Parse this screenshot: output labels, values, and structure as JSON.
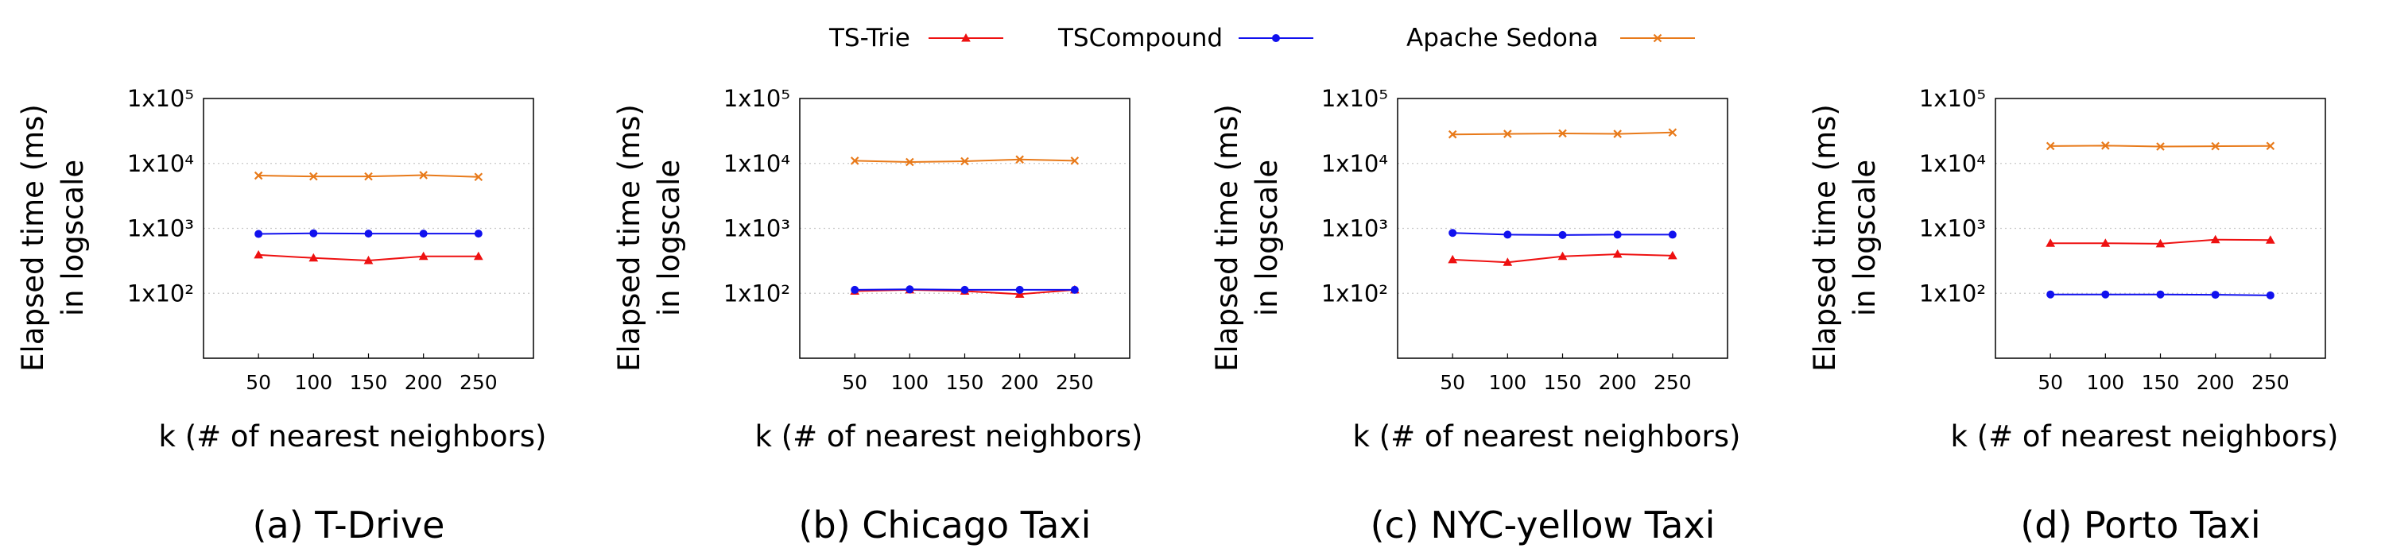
{
  "legend": {
    "placement": "top-center",
    "items": [
      {
        "label": "TS-Trie",
        "color": "#ee1111",
        "marker": "triangle"
      },
      {
        "label": "TSCompound",
        "color": "#1111ee",
        "marker": "circle"
      },
      {
        "label": "Apache Sedona",
        "color": "#e87a1a",
        "marker": "x"
      }
    ]
  },
  "chart_data": [
    {
      "type": "line",
      "title": "(a) T-Drive",
      "xlabel": "k (# of nearest neighbors)",
      "ylabel_line1": "Elapsed time (ms)",
      "ylabel_line2": "in logscale",
      "yscale": "log",
      "ylim": [
        10,
        100000
      ],
      "ytick_labels": [
        "1x10^2",
        "1x10^3",
        "1x10^4",
        "1x10^5"
      ],
      "x": [
        50,
        100,
        150,
        200,
        250
      ],
      "grid": "horizontal dotted",
      "series": [
        {
          "name": "TS-Trie",
          "values": [
            390,
            350,
            320,
            370,
            370
          ]
        },
        {
          "name": "TSCompound",
          "values": [
            820,
            840,
            830,
            830,
            830
          ]
        },
        {
          "name": "Apache Sedona",
          "values": [
            6500,
            6300,
            6300,
            6600,
            6200
          ]
        }
      ]
    },
    {
      "type": "line",
      "title": "(b) Chicago Taxi",
      "xlabel": "k (# of nearest neighbors)",
      "ylabel_line1": "Elapsed time (ms)",
      "ylabel_line2": "in logscale",
      "yscale": "log",
      "ylim": [
        10,
        100000
      ],
      "ytick_labels": [
        "1x10^2",
        "1x10^3",
        "1x10^4",
        "1x10^5"
      ],
      "x": [
        50,
        100,
        150,
        200,
        250
      ],
      "grid": "horizontal dotted",
      "series": [
        {
          "name": "TS-Trie",
          "values": [
            108,
            113,
            108,
            97,
            113
          ]
        },
        {
          "name": "TSCompound",
          "values": [
            113,
            115,
            113,
            113,
            113
          ]
        },
        {
          "name": "Apache Sedona",
          "values": [
            11000,
            10500,
            10800,
            11500,
            11000
          ]
        }
      ]
    },
    {
      "type": "line",
      "title": "(c) NYC-yellow Taxi",
      "xlabel": "k (# of nearest neighbors)",
      "ylabel_line1": "Elapsed time (ms)",
      "ylabel_line2": "in logscale",
      "yscale": "log",
      "ylim": [
        10,
        100000
      ],
      "ytick_labels": [
        "1x10^2",
        "1x10^3",
        "1x10^4",
        "1x10^5"
      ],
      "x": [
        50,
        100,
        150,
        200,
        250
      ],
      "grid": "horizontal dotted",
      "series": [
        {
          "name": "TS-Trie",
          "values": [
            330,
            300,
            370,
            400,
            380
          ]
        },
        {
          "name": "TSCompound",
          "values": [
            850,
            800,
            790,
            800,
            800
          ]
        },
        {
          "name": "Apache Sedona",
          "values": [
            28000,
            28500,
            29000,
            28500,
            30000
          ]
        }
      ]
    },
    {
      "type": "line",
      "title": "(d) Porto Taxi",
      "xlabel": "k (# of nearest neighbors)",
      "ylabel_line1": "Elapsed time (ms)",
      "ylabel_line2": "in logscale",
      "yscale": "log",
      "ylim": [
        10,
        100000
      ],
      "ytick_labels": [
        "1x10^2",
        "1x10^3",
        "1x10^4",
        "1x10^5"
      ],
      "x": [
        50,
        100,
        150,
        200,
        250
      ],
      "grid": "horizontal dotted",
      "series": [
        {
          "name": "TS-Trie",
          "values": [
            590,
            590,
            580,
            670,
            660
          ]
        },
        {
          "name": "TSCompound",
          "values": [
            96,
            96,
            96,
            95,
            93
          ]
        },
        {
          "name": "Apache Sedona",
          "values": [
            18500,
            18800,
            18200,
            18400,
            18600
          ]
        }
      ]
    }
  ]
}
